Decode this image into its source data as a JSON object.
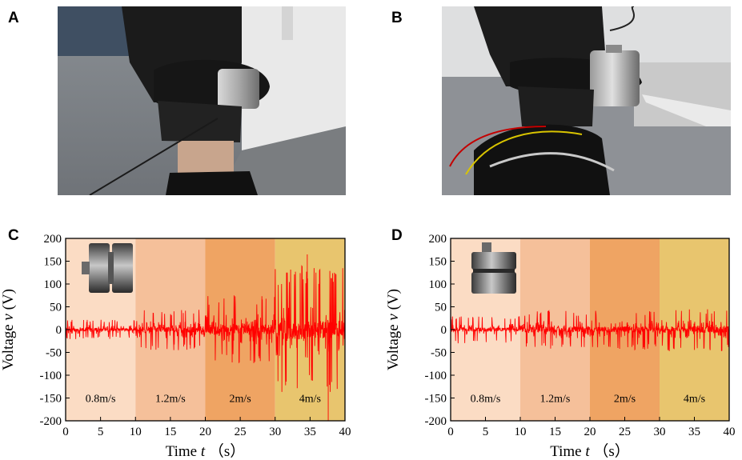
{
  "panels": {
    "a": "A",
    "b": "B",
    "c": "C",
    "d": "D"
  },
  "colors": {
    "signal": "#ff0000",
    "band1": "#fbdcc4",
    "band2": "#f5c09a",
    "band3": "#efa463",
    "band4": "#e8c56e"
  },
  "chart_data": [
    {
      "type": "line",
      "panel": "C",
      "xlabel_main": "Time",
      "xlabel_var": "t",
      "xlabel_unit": "（s）",
      "ylabel_main": "Voltage",
      "ylabel_var": "v",
      "ylabel_unit": "(V)",
      "xlim": [
        0,
        40
      ],
      "ylim": [
        -200,
        200
      ],
      "xticks": [
        0,
        5,
        10,
        15,
        20,
        25,
        30,
        35,
        40
      ],
      "yticks": [
        200,
        150,
        100,
        50,
        0,
        -50,
        -100,
        -150,
        -200
      ],
      "segments": [
        {
          "label": "0.8m/s",
          "x0": 0,
          "x1": 10,
          "amplitude": 22
        },
        {
          "label": "1.2m/s",
          "x0": 10,
          "x1": 20,
          "amplitude": 45
        },
        {
          "label": "2m/s",
          "x0": 20,
          "x1": 30,
          "amplitude": 75
        },
        {
          "label": "4m/s",
          "x0": 30,
          "x1": 40,
          "amplitude": 140
        }
      ],
      "spikes": [
        {
          "x": 37.6,
          "y": -200
        },
        {
          "x": 34.6,
          "y": 165
        }
      ],
      "inset_icon": "cylinder-side-icon"
    },
    {
      "type": "line",
      "panel": "D",
      "xlabel_main": "Time",
      "xlabel_var": "t",
      "xlabel_unit": "（s）",
      "ylabel_main": "Voltage",
      "ylabel_var": "v",
      "ylabel_unit": "(V)",
      "xlim": [
        0,
        40
      ],
      "ylim": [
        -200,
        200
      ],
      "xticks": [
        0,
        5,
        10,
        15,
        20,
        25,
        30,
        35,
        40
      ],
      "yticks": [
        200,
        150,
        100,
        50,
        0,
        -50,
        -100,
        -150,
        -200
      ],
      "segments": [
        {
          "label": "0.8m/s",
          "x0": 0,
          "x1": 10,
          "amplitude": 30
        },
        {
          "label": "1.2m/s",
          "x0": 10,
          "x1": 20,
          "amplitude": 42
        },
        {
          "label": "2m/s",
          "x0": 20,
          "x1": 30,
          "amplitude": 45
        },
        {
          "label": "4m/s",
          "x0": 30,
          "x1": 40,
          "amplitude": 48
        }
      ],
      "spikes": [],
      "inset_icon": "cylinder-upright-icon"
    }
  ]
}
